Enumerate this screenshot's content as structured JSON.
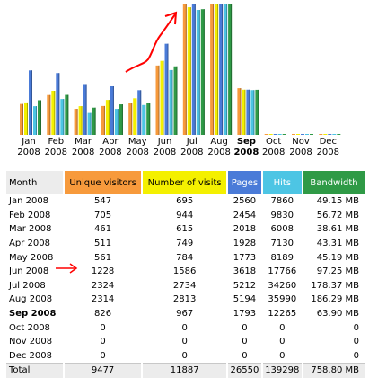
{
  "months": [
    {
      "month": "Jan",
      "year": "2008",
      "label": "Jan 2008",
      "unique": "547",
      "visits": "695",
      "pages": "2560",
      "hits": "7860",
      "bandwidth": "49.15 MB",
      "bw_mb": 49.15,
      "current": false
    },
    {
      "month": "Feb",
      "year": "2008",
      "label": "Feb 2008",
      "unique": "705",
      "visits": "944",
      "pages": "2454",
      "hits": "9830",
      "bandwidth": "56.72 MB",
      "bw_mb": 56.72,
      "current": false
    },
    {
      "month": "Mar",
      "year": "2008",
      "label": "Mar 2008",
      "unique": "461",
      "visits": "615",
      "pages": "2018",
      "hits": "6008",
      "bandwidth": "38.61 MB",
      "bw_mb": 38.61,
      "current": false
    },
    {
      "month": "Apr",
      "year": "2008",
      "label": "Apr 2008",
      "unique": "511",
      "visits": "749",
      "pages": "1928",
      "hits": "7130",
      "bandwidth": "43.31 MB",
      "bw_mb": 43.31,
      "current": false
    },
    {
      "month": "May",
      "year": "2008",
      "label": "May 2008",
      "unique": "561",
      "visits": "784",
      "pages": "1773",
      "hits": "8189",
      "bandwidth": "45.19 MB",
      "bw_mb": 45.19,
      "current": false
    },
    {
      "month": "Jun",
      "year": "2008",
      "label": "Jun 2008",
      "unique": "1228",
      "visits": "1586",
      "pages": "3618",
      "hits": "17766",
      "bandwidth": "97.25 MB",
      "bw_mb": 97.25,
      "current": false
    },
    {
      "month": "Jul",
      "year": "2008",
      "label": "Jul 2008",
      "unique": "2324",
      "visits": "2734",
      "pages": "5212",
      "hits": "34260",
      "bandwidth": "178.37 MB",
      "bw_mb": 178.37,
      "current": false
    },
    {
      "month": "Aug",
      "year": "2008",
      "label": "Aug 2008",
      "unique": "2314",
      "visits": "2813",
      "pages": "5194",
      "hits": "35990",
      "bandwidth": "186.29 MB",
      "bw_mb": 186.29,
      "current": false
    },
    {
      "month": "Sep",
      "year": "2008",
      "label": "Sep 2008",
      "unique": "826",
      "visits": "967",
      "pages": "1793",
      "hits": "12265",
      "bandwidth": "63.90 MB",
      "bw_mb": 63.9,
      "current": true
    },
    {
      "month": "Oct",
      "year": "2008",
      "label": "Oct 2008",
      "unique": "0",
      "visits": "0",
      "pages": "0",
      "hits": "0",
      "bandwidth": "0",
      "bw_mb": 0,
      "current": false
    },
    {
      "month": "Nov",
      "year": "2008",
      "label": "Nov 2008",
      "unique": "0",
      "visits": "0",
      "pages": "0",
      "hits": "0",
      "bandwidth": "0",
      "bw_mb": 0,
      "current": false
    },
    {
      "month": "Dec",
      "year": "2008",
      "label": "Dec 2008",
      "unique": "0",
      "visits": "0",
      "pages": "0",
      "hits": "0",
      "bandwidth": "0",
      "bw_mb": 0,
      "current": false
    }
  ],
  "table": {
    "headers": {
      "month": "Month",
      "unique": "Unique visitors",
      "visits": "Number of visits",
      "pages": "Pages",
      "hits": "Hits",
      "bandwidth": "Bandwidth"
    },
    "total": {
      "label": "Total",
      "unique": "9477",
      "visits": "11887",
      "pages": "26550",
      "hits": "139298",
      "bandwidth": "758.80 MB"
    }
  },
  "colors": {
    "unique": "#f79a3c",
    "visits": "#f4f000",
    "pages": "#4a7bd8",
    "hits": "#4dc5e4",
    "bandwidth": "#2f9a46",
    "annotation": "#ff0000"
  },
  "icons": {
    "annotation_chart": "red-hand-drawn-arrow-icon",
    "annotation_table": "red-arrow-icon"
  },
  "chart_data": {
    "type": "bar",
    "categories": [
      "Jan 2008",
      "Feb 2008",
      "Mar 2008",
      "Apr 2008",
      "May 2008",
      "Jun 2008",
      "Jul 2008",
      "Aug 2008",
      "Sep 2008",
      "Oct 2008",
      "Nov 2008",
      "Dec 2008"
    ],
    "series": [
      {
        "name": "Unique visitors",
        "values": [
          547,
          705,
          461,
          511,
          561,
          1228,
          2324,
          2314,
          826,
          0,
          0,
          0
        ]
      },
      {
        "name": "Number of visits",
        "values": [
          695,
          944,
          615,
          749,
          784,
          1586,
          2734,
          2813,
          967,
          0,
          0,
          0
        ]
      },
      {
        "name": "Pages",
        "values": [
          2560,
          2454,
          2018,
          1928,
          1773,
          3618,
          5212,
          5194,
          1793,
          0,
          0,
          0
        ]
      },
      {
        "name": "Hits",
        "values": [
          7860,
          9830,
          6008,
          7130,
          8189,
          17766,
          34260,
          35990,
          12265,
          0,
          0,
          0
        ]
      },
      {
        "name": "Bandwidth",
        "values": [
          49.15,
          56.72,
          38.61,
          43.31,
          45.19,
          97.25,
          178.37,
          186.29,
          63.9,
          0,
          0,
          0
        ]
      }
    ],
    "title": "",
    "xlabel": "",
    "ylabel": "",
    "grid": false,
    "legend": "none"
  }
}
